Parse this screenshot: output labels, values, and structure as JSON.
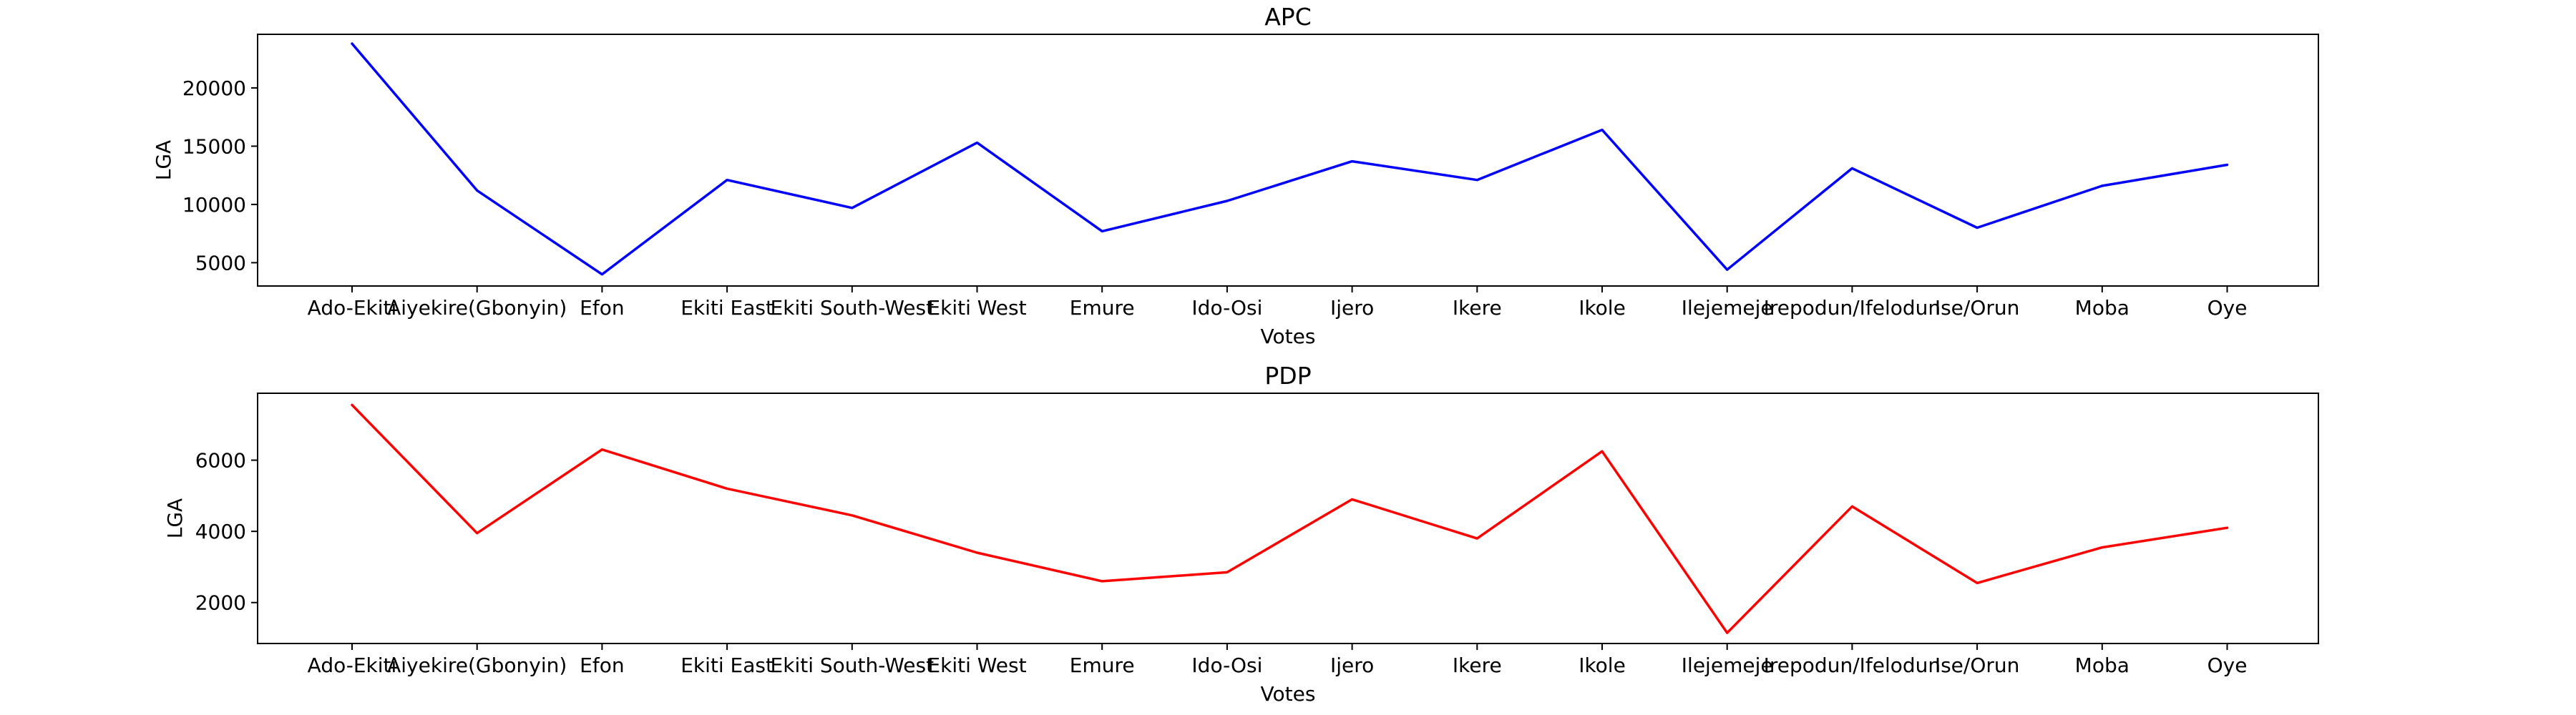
{
  "chart_data": [
    {
      "type": "line",
      "title": "APC",
      "xlabel": "Votes",
      "ylabel": "LGA",
      "categories": [
        "Ado-Ekiti",
        "Aiyekire(Gbonyin)",
        "Efon",
        "Ekiti East",
        "Ekiti South-West",
        "Ekiti West",
        "Emure",
        "Ido-Osi",
        "Ijero",
        "Ikere",
        "Ikole",
        "Ilejemeje",
        "Irepodun/Ifelodun",
        "Ise/Orun",
        "Moba",
        "Oye"
      ],
      "series": [
        {
          "color": "#0000ff",
          "values": [
            23800,
            11200,
            4000,
            12100,
            9700,
            15300,
            7700,
            10300,
            13700,
            12100,
            16400,
            4400,
            13100,
            8000,
            11600,
            13400
          ]
        }
      ],
      "ylim": [
        3000,
        24600
      ],
      "yticks": [
        5000,
        10000,
        15000,
        20000
      ],
      "grid": false
    },
    {
      "type": "line",
      "title": "PDP",
      "xlabel": "Votes",
      "ylabel": "LGA",
      "categories": [
        "Ado-Ekiti",
        "Aiyekire(Gbonyin)",
        "Efon",
        "Ekiti East",
        "Ekiti South-West",
        "Ekiti West",
        "Emure",
        "Ido-Osi",
        "Ijero",
        "Ikere",
        "Ikole",
        "Ilejemeje",
        "Irepodun/Ifelodun",
        "Ise/Orun",
        "Moba",
        "Oye"
      ],
      "series": [
        {
          "color": "#ff0000",
          "values": [
            7550,
            3950,
            6300,
            5200,
            4450,
            3400,
            2600,
            2850,
            4900,
            3800,
            6250,
            1150,
            4700,
            2550,
            3550,
            4100
          ]
        }
      ],
      "ylim": [
        850,
        7880
      ],
      "yticks": [
        2000,
        4000,
        6000
      ],
      "grid": false
    }
  ]
}
